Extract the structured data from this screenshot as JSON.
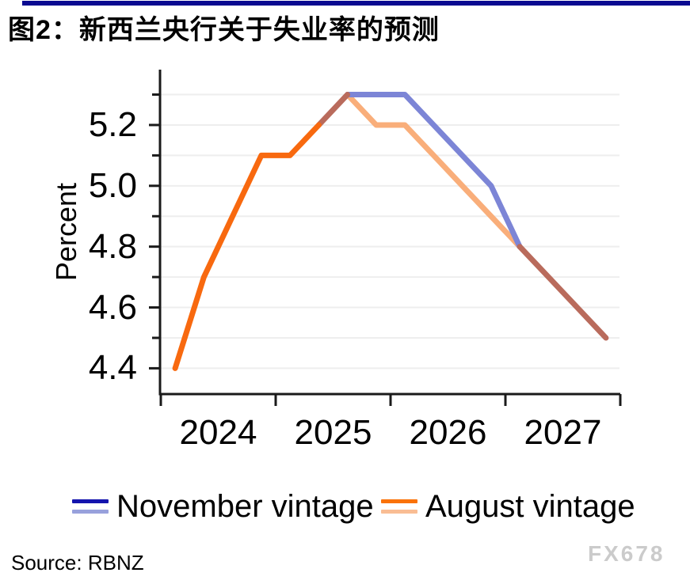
{
  "page": {
    "title_bar_color": "#0a0a91"
  },
  "header": {
    "title": "图2：新西兰央行关于失业率的预测"
  },
  "chart_data": {
    "type": "line",
    "ylabel": "Percent",
    "categories": [
      "2024Q1",
      "2024Q2",
      "2024Q3",
      "2024Q4",
      "2025Q1",
      "2025Q2",
      "2025Q3",
      "2025Q4",
      "2026Q1",
      "2026Q2",
      "2026Q3",
      "2026Q4",
      "2027Q1",
      "2027Q2",
      "2027Q3",
      "2027Q4"
    ],
    "series": [
      {
        "name": "November vintage",
        "values": [
          4.4,
          4.7,
          4.9,
          5.1,
          5.1,
          5.2,
          5.3,
          5.3,
          5.3,
          5.2,
          5.1,
          5.0,
          4.8,
          4.7,
          4.6,
          4.5
        ],
        "history_color": "#1414ad",
        "forecast_color": "#7c85d6"
      },
      {
        "name": "August vintage",
        "values": [
          4.4,
          4.7,
          4.9,
          5.1,
          5.1,
          5.2,
          5.3,
          5.2,
          5.2,
          5.1,
          5.0,
          4.9,
          4.8,
          4.7,
          4.6,
          4.5
        ],
        "history_color": "#f8690f",
        "forecast_color": "#f9ae7a"
      }
    ],
    "history_end_index": 5,
    "merge_index": 12,
    "overlap_color": "#b96b5c",
    "x_tick_labels": [
      "2024",
      "2025",
      "2026",
      "2027"
    ],
    "y_tick_labels": [
      "5.2",
      "5.0",
      "4.8",
      "4.6",
      "4.4"
    ],
    "y_minor_ticks": [
      5.3,
      5.1,
      4.9,
      4.7,
      4.5
    ],
    "grid_values": [
      4.4,
      4.5,
      4.6,
      4.7,
      4.8,
      4.9,
      5.0,
      5.1,
      5.2,
      5.3
    ],
    "ylim": [
      4.35,
      5.38
    ],
    "grid_on": true,
    "grid_color": "#eeeeee",
    "axis_color": "#1a1a1a",
    "legend_position": "bottom"
  },
  "legend": {
    "items": [
      {
        "label": "November vintage",
        "dark_color": "#1414ad",
        "light_color": "#98a1dc"
      },
      {
        "label": "August vintage",
        "dark_color": "#fa7208",
        "light_color": "#f9bd94"
      }
    ]
  },
  "footer": {
    "source": "Source: RBNZ",
    "watermark": "FX678"
  }
}
